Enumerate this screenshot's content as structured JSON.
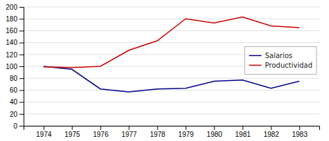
{
  "chart_data": {
    "type": "line",
    "x": [
      1974,
      1975,
      1976,
      1977,
      1978,
      1979,
      1980,
      1981,
      1982,
      1983
    ],
    "series": [
      {
        "name": "Salarios",
        "color": "#00008B",
        "values": [
          100,
          95,
          62,
          57,
          62,
          63,
          75,
          77,
          63,
          75
        ]
      },
      {
        "name": "Productividad",
        "color": "#CC0000",
        "values": [
          99,
          98,
          100,
          127,
          143,
          180,
          173,
          183,
          168,
          165
        ]
      }
    ],
    "xlim": [
      1973.3,
      1983.7
    ],
    "xticks": [
      1974,
      1975,
      1976,
      1977,
      1978,
      1979,
      1980,
      1981,
      1982,
      1983
    ],
    "ylim": [
      0,
      200
    ],
    "yticks": [
      0,
      20,
      40,
      60,
      80,
      100,
      120,
      140,
      160,
      180,
      200
    ],
    "grid": true,
    "legend": "right"
  }
}
